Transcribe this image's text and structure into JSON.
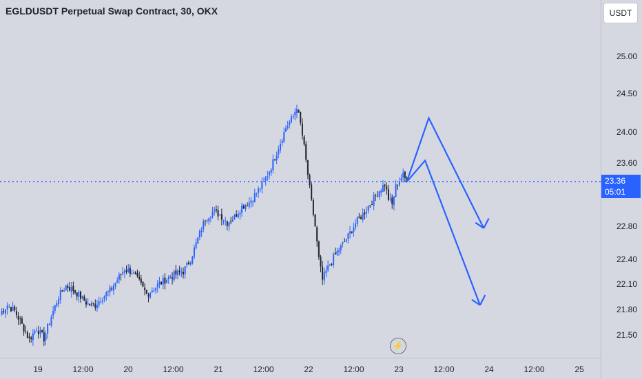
{
  "title": "EGLDUSDT Perpetual Swap Contract, 30, OKX",
  "currency_button": "USDT",
  "price_tag": {
    "price": "23.36",
    "countdown": "05:01"
  },
  "colors": {
    "background": "#d5d8e1",
    "up": "#2962ff",
    "down": "#1e222d",
    "accent": "#2962ff",
    "text": "#1e222d"
  },
  "icons": {
    "flash": "lightning-bolt-icon"
  },
  "chart_data": {
    "type": "candlestick",
    "title": "EGLDUSDT Perpetual Swap Contract, 30, OKX",
    "price_axis": {
      "ticks": [
        "25.00",
        "24.50",
        "24.00",
        "23.60",
        "22.80",
        "22.40",
        "22.10",
        "21.80",
        "21.50"
      ],
      "scale": "log",
      "current_price": 23.36
    },
    "time_axis": {
      "ticks": [
        "19",
        "12:00",
        "20",
        "12:00",
        "21",
        "12:00",
        "22",
        "12:00",
        "23",
        "12:00",
        "24",
        "12:00",
        "25"
      ]
    },
    "price_path": [
      [
        0,
        21.75
      ],
      [
        4,
        21.85
      ],
      [
        8,
        21.78
      ],
      [
        12,
        21.62
      ],
      [
        16,
        21.45
      ],
      [
        20,
        21.58
      ],
      [
        24,
        21.46
      ],
      [
        28,
        21.72
      ],
      [
        32,
        21.95
      ],
      [
        36,
        22.08
      ],
      [
        40,
        22.03
      ],
      [
        44,
        21.95
      ],
      [
        48,
        21.86
      ],
      [
        52,
        21.85
      ],
      [
        56,
        21.95
      ],
      [
        60,
        22.02
      ],
      [
        64,
        22.15
      ],
      [
        68,
        22.28
      ],
      [
        72,
        22.25
      ],
      [
        76,
        22.12
      ],
      [
        80,
        21.98
      ],
      [
        84,
        22.05
      ],
      [
        88,
        22.12
      ],
      [
        92,
        22.18
      ],
      [
        96,
        22.22
      ],
      [
        100,
        22.25
      ],
      [
        104,
        22.4
      ],
      [
        108,
        22.65
      ],
      [
        112,
        22.9
      ],
      [
        116,
        22.98
      ],
      [
        120,
        22.95
      ],
      [
        124,
        22.85
      ],
      [
        128,
        22.92
      ],
      [
        132,
        23.05
      ],
      [
        136,
        23.1
      ],
      [
        140,
        23.22
      ],
      [
        144,
        23.35
      ],
      [
        148,
        23.55
      ],
      [
        152,
        23.8
      ],
      [
        156,
        24.05
      ],
      [
        160,
        24.2
      ],
      [
        162,
        24.33
      ],
      [
        164,
        24.1
      ],
      [
        166,
        23.8
      ],
      [
        168,
        23.45
      ],
      [
        170,
        23.1
      ],
      [
        172,
        22.8
      ],
      [
        174,
        22.4
      ],
      [
        176,
        22.15
      ],
      [
        178,
        22.25
      ],
      [
        182,
        22.42
      ],
      [
        186,
        22.55
      ],
      [
        190,
        22.68
      ],
      [
        194,
        22.84
      ],
      [
        198,
        22.95
      ],
      [
        202,
        23.08
      ],
      [
        206,
        23.22
      ],
      [
        210,
        23.33
      ],
      [
        212,
        23.15
      ],
      [
        214,
        23.07
      ],
      [
        216,
        23.3
      ],
      [
        218,
        23.38
      ],
      [
        220,
        23.44
      ],
      [
        222,
        23.36
      ]
    ],
    "projection": [
      {
        "name": "",
        "points": [
          [
            222,
            23.36
          ],
          [
            234,
            24.18
          ],
          [
            264,
            22.78
          ]
        ],
        "arrow_end": [
          266,
          22.85
        ]
      },
      {
        "name": "",
        "points": [
          [
            222,
            23.36
          ],
          [
            232,
            23.63
          ],
          [
            262,
            21.85
          ]
        ],
        "arrow_end": [
          264,
          21.92
        ]
      }
    ],
    "grid": false
  }
}
